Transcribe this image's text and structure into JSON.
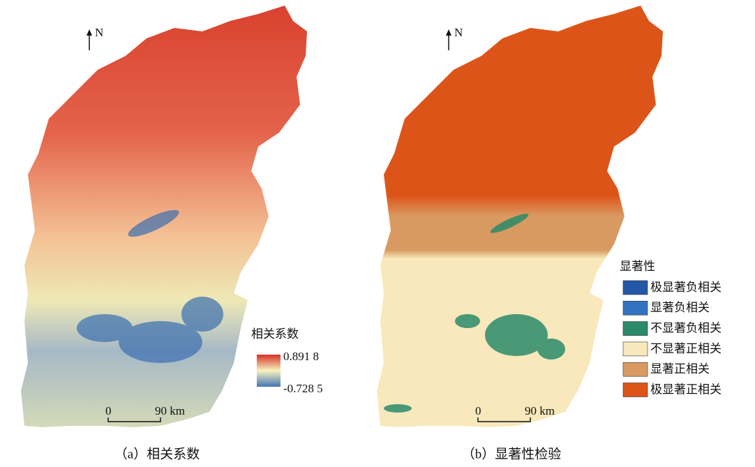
{
  "panels": [
    {
      "north": "N",
      "legend": {
        "title": "相关系数",
        "max_label": "0.891 8",
        "min_label": "-0.728 5"
      },
      "scale": {
        "start": "0",
        "end": "90 km"
      },
      "caption": "（a）相关系数"
    },
    {
      "north": "N",
      "legend": {
        "title": "显著性",
        "items": [
          {
            "label": "极显著负相关",
            "color": "#2358a6"
          },
          {
            "label": "显著负相关",
            "color": "#3173c0"
          },
          {
            "label": "不显著负相关",
            "color": "#2a8a6a"
          },
          {
            "label": "不显著正相关",
            "color": "#f8e8bb"
          },
          {
            "label": "显著正相关",
            "color": "#d99a62"
          },
          {
            "label": "极显著正相关",
            "color": "#dd5419"
          }
        ]
      },
      "scale": {
        "start": "0",
        "end": "90 km"
      },
      "caption": "（b）显著性检验"
    }
  ]
}
